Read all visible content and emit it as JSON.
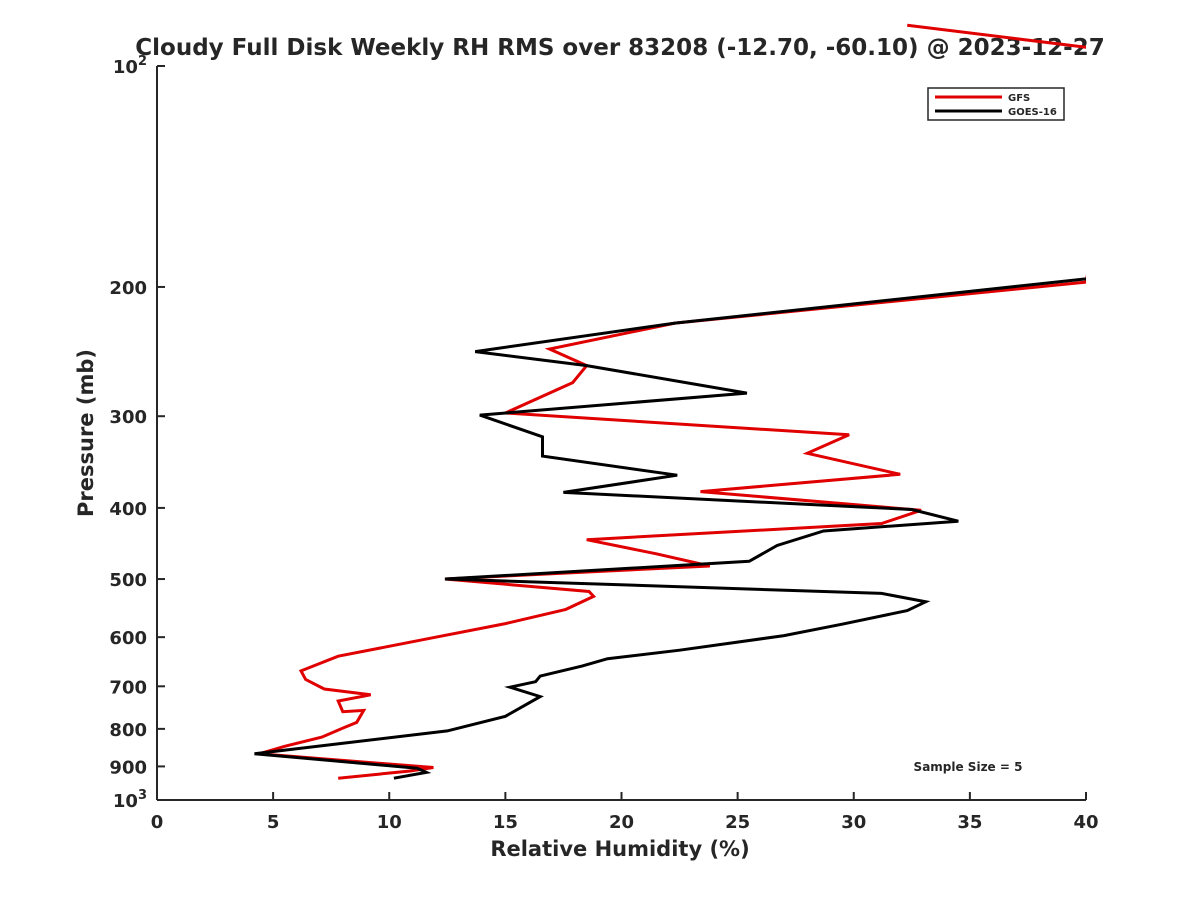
{
  "chart_data": {
    "type": "line",
    "title": "Cloudy Full Disk Weekly RH RMS over 83208 (-12.70, -60.10) @ 2023-12-27",
    "xlabel": "Relative Humidity (%)",
    "ylabel": "Pressure (mb)",
    "xlim": [
      0,
      40
    ],
    "ylim": [
      100,
      1000
    ],
    "yscale": "log",
    "y_reversed": true,
    "x_ticks": [
      "0",
      "5",
      "10",
      "15",
      "20",
      "25",
      "30",
      "35",
      "40"
    ],
    "y_ticks": [
      {
        "value": 100,
        "base": "10",
        "exp": "2"
      },
      {
        "value": 200,
        "label": "200"
      },
      {
        "value": 300,
        "label": "300"
      },
      {
        "value": 400,
        "label": "400"
      },
      {
        "value": 500,
        "label": "500"
      },
      {
        "value": 600,
        "label": "600"
      },
      {
        "value": 700,
        "label": "700"
      },
      {
        "value": 800,
        "label": "800"
      },
      {
        "value": 900,
        "label": "900"
      },
      {
        "value": 1000,
        "base": "10",
        "exp": "3"
      }
    ],
    "legend_position": "top-right",
    "annotation": "Sample Size = 5",
    "series": [
      {
        "name": "GFS",
        "color": "#e00000",
        "points": [
          [
            32.3,
            88
          ],
          [
            42.0,
            96
          ],
          [
            40.0,
            197
          ],
          [
            22.3,
            224
          ],
          [
            16.9,
            243
          ],
          [
            18.5,
            256
          ],
          [
            17.9,
            270
          ],
          [
            15.0,
            297
          ],
          [
            29.8,
            318
          ],
          [
            28.0,
            337
          ],
          [
            32.0,
            360
          ],
          [
            23.4,
            380
          ],
          [
            32.9,
            403
          ],
          [
            31.2,
            420
          ],
          [
            18.5,
            442
          ],
          [
            21.5,
            462
          ],
          [
            23.8,
            480
          ],
          [
            12.4,
            500
          ],
          [
            18.6,
            520
          ],
          [
            18.8,
            528
          ],
          [
            17.6,
            550
          ],
          [
            15.0,
            575
          ],
          [
            12.0,
            600
          ],
          [
            7.8,
            637
          ],
          [
            6.2,
            667
          ],
          [
            6.4,
            685
          ],
          [
            7.2,
            706
          ],
          [
            9.2,
            719
          ],
          [
            7.8,
            733
          ],
          [
            8.0,
            758
          ],
          [
            8.9,
            755
          ],
          [
            8.6,
            784
          ],
          [
            8.0,
            798
          ],
          [
            7.1,
            821
          ],
          [
            5.5,
            845
          ],
          [
            4.4,
            865
          ],
          [
            11.9,
            903
          ],
          [
            10.9,
            913
          ],
          [
            7.8,
            934
          ]
        ]
      },
      {
        "name": "GOES-16",
        "color": "#000000",
        "points": [
          [
            40.0,
            195
          ],
          [
            22.3,
            224
          ],
          [
            13.7,
            245
          ],
          [
            18.5,
            256
          ],
          [
            25.4,
            279
          ],
          [
            13.9,
            299
          ],
          [
            16.6,
            320
          ],
          [
            16.6,
            340
          ],
          [
            22.4,
            361
          ],
          [
            17.5,
            381
          ],
          [
            32.5,
            402
          ],
          [
            34.5,
            417
          ],
          [
            28.7,
            430
          ],
          [
            26.7,
            450
          ],
          [
            25.5,
            473
          ],
          [
            12.4,
            500
          ],
          [
            31.2,
            523
          ],
          [
            33.1,
            537
          ],
          [
            32.3,
            552
          ],
          [
            29.5,
            576
          ],
          [
            27.0,
            597
          ],
          [
            22.5,
            625
          ],
          [
            19.4,
            642
          ],
          [
            18.3,
            657
          ],
          [
            16.5,
            678
          ],
          [
            16.3,
            690
          ],
          [
            15.2,
            702
          ],
          [
            16.5,
            723
          ],
          [
            15.0,
            769
          ],
          [
            12.5,
            805
          ],
          [
            4.2,
            865
          ],
          [
            11.2,
            905
          ],
          [
            11.6,
            917
          ],
          [
            10.2,
            934
          ]
        ]
      }
    ]
  }
}
